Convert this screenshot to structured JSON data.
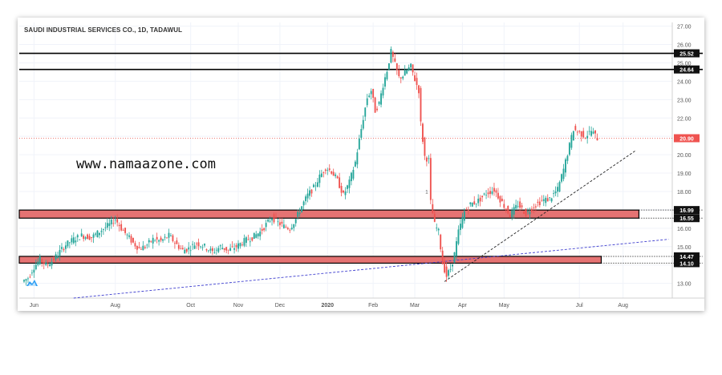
{
  "chart_data": {
    "type": "candlestick",
    "title": "SAUDI INDUSTRIAL SERVICES CO., 1D, TADAWUL",
    "watermark": "www.namaazone.com",
    "current_price": 20.9,
    "ylim": [
      12.2,
      27.2
    ],
    "y_ticks": [
      13.0,
      14.0,
      15.0,
      16.0,
      17.0,
      18.0,
      19.0,
      20.0,
      21.0,
      22.0,
      23.0,
      24.0,
      25.0,
      26.0,
      27.0
    ],
    "y_tick_labels": [
      "13.00",
      "14.00",
      "15.00",
      "16.00",
      "17.00",
      "18.00",
      "19.00",
      "20.00",
      "21.00",
      "22.00",
      "23.00",
      "24.00",
      "25.00",
      "26.00",
      "27.00"
    ],
    "x_labels": [
      "Jun",
      "Aug",
      "Oct",
      "Nov",
      "Dec",
      "2020",
      "Feb",
      "Mar",
      "Apr",
      "May",
      "Jul",
      "Aug"
    ],
    "x_label_index": [
      5,
      46,
      84,
      108,
      129,
      153,
      176,
      197,
      221,
      242,
      280,
      302
    ],
    "price_labels": [
      {
        "value": 25.52,
        "text": "25.52",
        "style": "dark"
      },
      {
        "value": 24.64,
        "text": "24.64",
        "style": "dark"
      },
      {
        "value": 20.9,
        "text": "20.90",
        "style": "red"
      },
      {
        "value": 16.99,
        "text": "16.99",
        "style": "dark"
      },
      {
        "value": 16.55,
        "text": "16.55",
        "style": "dark"
      },
      {
        "value": 14.47,
        "text": "14.47",
        "style": "dark"
      },
      {
        "value": 14.1,
        "text": "14.10",
        "style": "dark"
      }
    ],
    "horizontal_lines": [
      25.52,
      24.64
    ],
    "zones": [
      {
        "from": 16.55,
        "to": 16.99,
        "end_index": 310
      },
      {
        "from": 14.1,
        "to": 14.47,
        "end_index": 291
      }
    ],
    "trendlines": [
      {
        "style": "dashed-blue",
        "x0": 25,
        "y0": 12.2,
        "x1": 325,
        "y1": 15.4
      },
      {
        "style": "dashed-black",
        "x0": 212,
        "y0": 13.1,
        "x1": 308,
        "y1": 20.2
      }
    ],
    "colors": {
      "up": "#26a69a",
      "down": "#ef5350",
      "zone_fill": "#e57373",
      "accent": "#e8524a"
    },
    "events": [
      {
        "x": 203,
        "text": "1"
      }
    ],
    "anchors": [
      [
        0,
        13.1
      ],
      [
        3,
        13.3
      ],
      [
        6,
        13.9
      ],
      [
        9,
        14.3
      ],
      [
        12,
        14.0
      ],
      [
        15,
        14.2
      ],
      [
        18,
        14.6
      ],
      [
        22,
        15.1
      ],
      [
        26,
        15.4
      ],
      [
        30,
        15.6
      ],
      [
        35,
        15.5
      ],
      [
        40,
        15.9
      ],
      [
        44,
        16.2
      ],
      [
        47,
        16.5
      ],
      [
        50,
        16.0
      ],
      [
        53,
        15.6
      ],
      [
        56,
        15.2
      ],
      [
        59,
        14.9
      ],
      [
        62,
        15.0
      ],
      [
        66,
        15.4
      ],
      [
        70,
        15.3
      ],
      [
        74,
        15.6
      ],
      [
        78,
        15.1
      ],
      [
        81,
        14.8
      ],
      [
        84,
        14.9
      ],
      [
        88,
        15.2
      ],
      [
        92,
        15.0
      ],
      [
        96,
        14.7
      ],
      [
        100,
        15.0
      ],
      [
        104,
        14.8
      ],
      [
        108,
        15.0
      ],
      [
        112,
        15.3
      ],
      [
        116,
        15.5
      ],
      [
        120,
        15.8
      ],
      [
        123,
        16.2
      ],
      [
        126,
        16.6
      ],
      [
        129,
        16.3
      ],
      [
        132,
        16.1
      ],
      [
        135,
        16.0
      ],
      [
        138,
        16.5
      ],
      [
        141,
        17.2
      ],
      [
        144,
        17.8
      ],
      [
        147,
        18.2
      ],
      [
        150,
        18.8
      ],
      [
        153,
        19.3
      ],
      [
        156,
        19.1
      ],
      [
        159,
        18.6
      ],
      [
        162,
        17.8
      ],
      [
        165,
        18.5
      ],
      [
        168,
        19.6
      ],
      [
        170,
        20.8
      ],
      [
        172,
        22.0
      ],
      [
        174,
        23.1
      ],
      [
        176,
        23.5
      ],
      [
        178,
        22.4
      ],
      [
        180,
        22.8
      ],
      [
        182,
        23.8
      ],
      [
        184,
        24.6
      ],
      [
        186,
        25.6
      ],
      [
        188,
        24.9
      ],
      [
        190,
        24.2
      ],
      [
        192,
        24.3
      ],
      [
        194,
        24.6
      ],
      [
        196,
        24.8
      ],
      [
        198,
        24.1
      ],
      [
        200,
        23.5
      ],
      [
        201,
        21.7
      ],
      [
        203,
        19.9
      ],
      [
        205,
        19.7
      ],
      [
        206,
        17.4
      ],
      [
        208,
        16.2
      ],
      [
        210,
        15.8
      ],
      [
        212,
        14.1
      ],
      [
        214,
        13.4
      ],
      [
        216,
        13.8
      ],
      [
        218,
        14.6
      ],
      [
        220,
        15.8
      ],
      [
        223,
        16.9
      ],
      [
        226,
        17.3
      ],
      [
        230,
        17.5
      ],
      [
        234,
        17.9
      ],
      [
        238,
        18.1
      ],
      [
        242,
        17.4
      ],
      [
        246,
        16.7
      ],
      [
        250,
        17.3
      ],
      [
        254,
        16.8
      ],
      [
        258,
        17.2
      ],
      [
        262,
        17.5
      ],
      [
        266,
        17.6
      ],
      [
        270,
        18.1
      ],
      [
        273,
        19.2
      ],
      [
        276,
        20.5
      ],
      [
        278,
        21.4
      ],
      [
        281,
        21.2
      ],
      [
        284,
        21.0
      ],
      [
        287,
        21.3
      ],
      [
        290,
        20.9
      ]
    ]
  }
}
